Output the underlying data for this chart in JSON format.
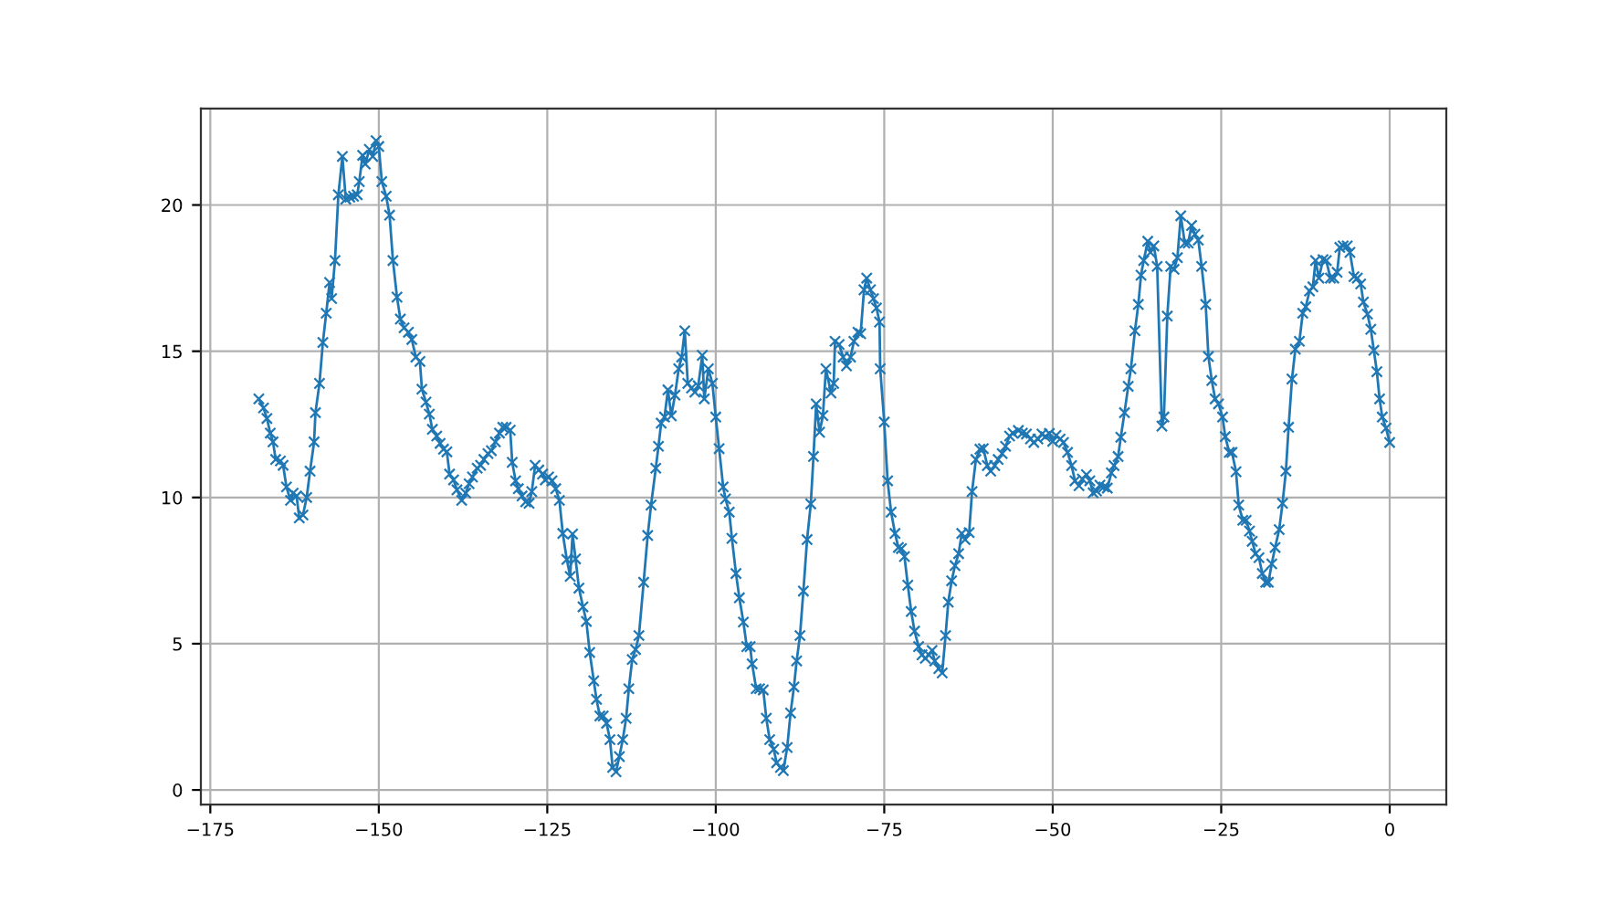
{
  "chart_data": {
    "type": "line",
    "x": [
      -167.8,
      -167.1,
      -166.6,
      -166.1,
      -165.7,
      -165.3,
      -164.6,
      -164.2,
      -163.7,
      -163.1,
      -162.7,
      -162.2,
      -161.8,
      -161.25,
      -160.7,
      -160.2,
      -159.6,
      -159.4,
      -158.8,
      -158.3,
      -157.8,
      -157.3,
      -157.0,
      -156.5,
      -156.0,
      -155.4,
      -154.9,
      -154.3,
      -153.75,
      -153.2,
      -152.9,
      -152.4,
      -152.0,
      -151.4,
      -150.9,
      -150.4,
      -150.0,
      -149.55,
      -148.9,
      -148.4,
      -147.9,
      -147.3,
      -146.8,
      -146.25,
      -145.6,
      -145.1,
      -144.5,
      -143.9,
      -143.6,
      -143.0,
      -142.5,
      -142.05,
      -141.4,
      -140.9,
      -140.4,
      -139.9,
      -139.5,
      -138.9,
      -138.4,
      -137.7,
      -137.1,
      -136.6,
      -136.1,
      -135.4,
      -134.9,
      -134.4,
      -133.8,
      -133.3,
      -132.7,
      -132.1,
      -131.6,
      -131.1,
      -130.5,
      -130.2,
      -129.7,
      -129.3,
      -128.75,
      -128.2,
      -127.7,
      -127.3,
      -126.8,
      -126.25,
      -125.7,
      -125.3,
      -124.8,
      -124.3,
      -123.75,
      -123.2,
      -122.7,
      -122.1,
      -121.6,
      -121.25,
      -120.8,
      -120.3,
      -119.7,
      -119.2,
      -118.7,
      -118.1,
      -117.7,
      -117.2,
      -116.7,
      -116.2,
      -115.7,
      -115.3,
      -114.8,
      -114.3,
      -113.8,
      -113.3,
      -112.9,
      -112.4,
      -111.9,
      -111.4,
      -110.7,
      -110.1,
      -109.6,
      -108.9,
      -108.5,
      -108.1,
      -107.6,
      -107.1,
      -106.6,
      -106.05,
      -105.5,
      -105.06,
      -104.6,
      -104.15,
      -103.6,
      -103.1,
      -102.6,
      -102.0,
      -101.7,
      -101.1,
      -100.5,
      -100.0,
      -99.5,
      -98.9,
      -98.55,
      -98.0,
      -97.6,
      -97.0,
      -96.5,
      -95.9,
      -95.4,
      -94.9,
      -94.6,
      -94.0,
      -93.5,
      -92.95,
      -92.5,
      -92.0,
      -91.4,
      -90.97,
      -90.4,
      -89.97,
      -89.4,
      -88.9,
      -88.4,
      -88.0,
      -87.5,
      -87.0,
      -86.45,
      -85.9,
      -85.5,
      -85.1,
      -84.6,
      -84.1,
      -83.65,
      -82.9,
      -82.5,
      -82.3,
      -81.7,
      -81.1,
      -80.6,
      -80.0,
      -79.5,
      -78.9,
      -78.5,
      -78.0,
      -77.6,
      -77.05,
      -76.6,
      -76.15,
      -75.7,
      -75.6,
      -75.0,
      -74.5,
      -73.98,
      -73.4,
      -72.9,
      -72.45,
      -72.0,
      -71.5,
      -71.0,
      -70.5,
      -69.9,
      -69.4,
      -68.9,
      -68.4,
      -67.9,
      -67.5,
      -66.9,
      -66.4,
      -65.9,
      -65.5,
      -65.0,
      -64.5,
      -63.96,
      -63.5,
      -63.0,
      -62.4,
      -61.97,
      -61.4,
      -60.8,
      -60.3,
      -59.7,
      -59.2,
      -58.6,
      -58.1,
      -57.5,
      -57.0,
      -56.4,
      -55.9,
      -55.1,
      -54.5,
      -53.9,
      -53.3,
      -52.8,
      -52.2,
      -51.6,
      -51.1,
      -50.5,
      -50.0,
      -49.5,
      -48.9,
      -48.4,
      -47.8,
      -47.2,
      -46.7,
      -46.1,
      -45.6,
      -45.0,
      -44.5,
      -44.0,
      -43.5,
      -43.0,
      -42.4,
      -41.9,
      -41.3,
      -40.9,
      -40.3,
      -39.9,
      -39.35,
      -38.8,
      -38.4,
      -37.8,
      -37.3,
      -36.9,
      -36.5,
      -35.9,
      -35.5,
      -35.0,
      -34.5,
      -33.8,
      -33.5,
      -33.0,
      -32.5,
      -32.0,
      -31.5,
      -31.0,
      -30.4,
      -29.9,
      -29.4,
      -28.9,
      -28.4,
      -27.9,
      -27.3,
      -26.9,
      -26.4,
      -25.9,
      -25.4,
      -24.8,
      -24.4,
      -23.8,
      -23.4,
      -22.8,
      -22.4,
      -21.8,
      -21.3,
      -20.8,
      -20.4,
      -19.9,
      -19.4,
      -18.9,
      -18.4,
      -18.0,
      -17.5,
      -17.0,
      -16.4,
      -15.9,
      -15.4,
      -15.0,
      -14.5,
      -14.0,
      -13.4,
      -12.9,
      -12.45,
      -11.9,
      -11.4,
      -11.0,
      -10.5,
      -9.9,
      -9.4,
      -8.8,
      -8.3,
      -7.8,
      -7.4,
      -6.9,
      -6.3,
      -5.9,
      -5.3,
      -4.8,
      -4.3,
      -3.9,
      -3.3,
      -2.8,
      -2.35,
      -1.9,
      -1.5,
      -1.1,
      -0.54,
      0.0
    ],
    "series": [
      {
        "color": "#1f77b4",
        "values": [
          13.37,
          13.06,
          12.7,
          12.2,
          11.9,
          11.3,
          11.25,
          11.1,
          10.36,
          9.9,
          10.15,
          10.05,
          9.3,
          9.4,
          10.0,
          10.9,
          11.9,
          12.9,
          13.9,
          15.3,
          16.3,
          17.35,
          16.8,
          18.1,
          20.35,
          21.66,
          20.2,
          20.27,
          20.3,
          20.35,
          20.8,
          21.7,
          21.4,
          21.9,
          21.66,
          22.2,
          22.0,
          20.8,
          20.3,
          19.65,
          18.1,
          16.85,
          16.1,
          15.8,
          15.65,
          15.4,
          14.8,
          14.65,
          13.7,
          13.26,
          12.85,
          12.33,
          12.1,
          11.85,
          11.65,
          11.56,
          10.8,
          10.6,
          10.26,
          9.9,
          10.15,
          10.47,
          10.7,
          11.0,
          11.1,
          11.3,
          11.5,
          11.6,
          11.9,
          12.2,
          12.4,
          12.4,
          12.3,
          11.2,
          10.57,
          10.3,
          10.05,
          9.85,
          9.8,
          10.2,
          11.1,
          10.94,
          10.8,
          10.6,
          10.7,
          10.57,
          10.3,
          9.9,
          8.77,
          7.88,
          7.3,
          8.75,
          7.9,
          6.9,
          6.26,
          5.76,
          4.7,
          3.73,
          3.1,
          2.53,
          2.53,
          2.28,
          1.72,
          0.77,
          0.62,
          1.14,
          1.72,
          2.45,
          3.46,
          4.46,
          4.8,
          5.28,
          7.1,
          8.7,
          9.74,
          11.0,
          11.75,
          12.54,
          12.75,
          13.68,
          12.79,
          13.5,
          14.4,
          14.8,
          15.7,
          13.9,
          13.74,
          13.6,
          13.82,
          14.86,
          13.37,
          14.4,
          13.9,
          12.75,
          11.67,
          10.36,
          9.95,
          9.5,
          8.6,
          7.4,
          6.57,
          5.74,
          4.9,
          4.9,
          4.31,
          3.46,
          3.46,
          3.42,
          2.45,
          1.72,
          1.39,
          0.93,
          0.77,
          0.66,
          1.45,
          2.63,
          3.52,
          4.41,
          5.28,
          6.8,
          8.56,
          9.78,
          11.4,
          13.2,
          12.23,
          12.8,
          14.4,
          13.57,
          13.9,
          15.34,
          15.23,
          14.8,
          14.5,
          14.8,
          15.34,
          15.65,
          15.6,
          17.1,
          17.5,
          17.1,
          16.8,
          16.48,
          16.0,
          14.4,
          12.58,
          10.57,
          9.5,
          8.77,
          8.29,
          8.25,
          7.98,
          7.0,
          6.1,
          5.43,
          4.9,
          4.62,
          4.5,
          4.62,
          4.77,
          4.41,
          4.15,
          4.0,
          5.28,
          6.42,
          7.15,
          7.67,
          8.08,
          8.77,
          8.56,
          8.8,
          10.2,
          11.3,
          11.65,
          11.67,
          11.09,
          10.9,
          11.09,
          11.3,
          11.5,
          11.75,
          12.1,
          12.2,
          12.29,
          12.2,
          12.17,
          12.0,
          11.88,
          12.0,
          12.17,
          12.08,
          12.19,
          11.92,
          12.12,
          12.0,
          11.88,
          11.54,
          11.09,
          10.57,
          10.4,
          10.63,
          10.78,
          10.57,
          10.16,
          10.22,
          10.42,
          10.36,
          10.32,
          10.84,
          11.09,
          11.4,
          12.06,
          12.9,
          13.8,
          14.4,
          15.7,
          16.6,
          17.6,
          18.1,
          18.76,
          18.38,
          18.6,
          17.9,
          12.44,
          12.75,
          16.2,
          17.9,
          17.8,
          18.2,
          19.63,
          18.7,
          18.7,
          19.3,
          19.0,
          18.8,
          17.9,
          16.6,
          14.82,
          14.0,
          13.37,
          13.2,
          12.75,
          12.08,
          11.54,
          11.54,
          10.88,
          9.74,
          9.22,
          9.22,
          8.85,
          8.5,
          8.08,
          7.94,
          7.4,
          7.1,
          7.1,
          7.73,
          8.29,
          8.9,
          9.8,
          10.9,
          12.4,
          14.05,
          15.07,
          15.34,
          16.3,
          16.52,
          17.06,
          17.2,
          18.1,
          17.5,
          18.13,
          18.1,
          17.5,
          17.5,
          17.7,
          18.55,
          18.6,
          18.6,
          18.38,
          17.55,
          17.5,
          17.3,
          16.68,
          16.27,
          15.75,
          15.03,
          14.3,
          13.37,
          12.75,
          12.37,
          11.88
        ]
      }
    ],
    "xlim": [
      -176.4,
      8.4
    ],
    "ylim": [
      -0.5,
      23.3
    ],
    "xticks": [
      {
        "value": -175,
        "label": "−175"
      },
      {
        "value": -150,
        "label": "−150"
      },
      {
        "value": -125,
        "label": "−125"
      },
      {
        "value": -100,
        "label": "−100"
      },
      {
        "value": -75,
        "label": "−75"
      },
      {
        "value": -50,
        "label": "−50"
      },
      {
        "value": -25,
        "label": "−25"
      },
      0
    ],
    "yticks": [
      0,
      5,
      10,
      15,
      20
    ],
    "grid": true,
    "marker": "cross",
    "line_style": "solid"
  }
}
